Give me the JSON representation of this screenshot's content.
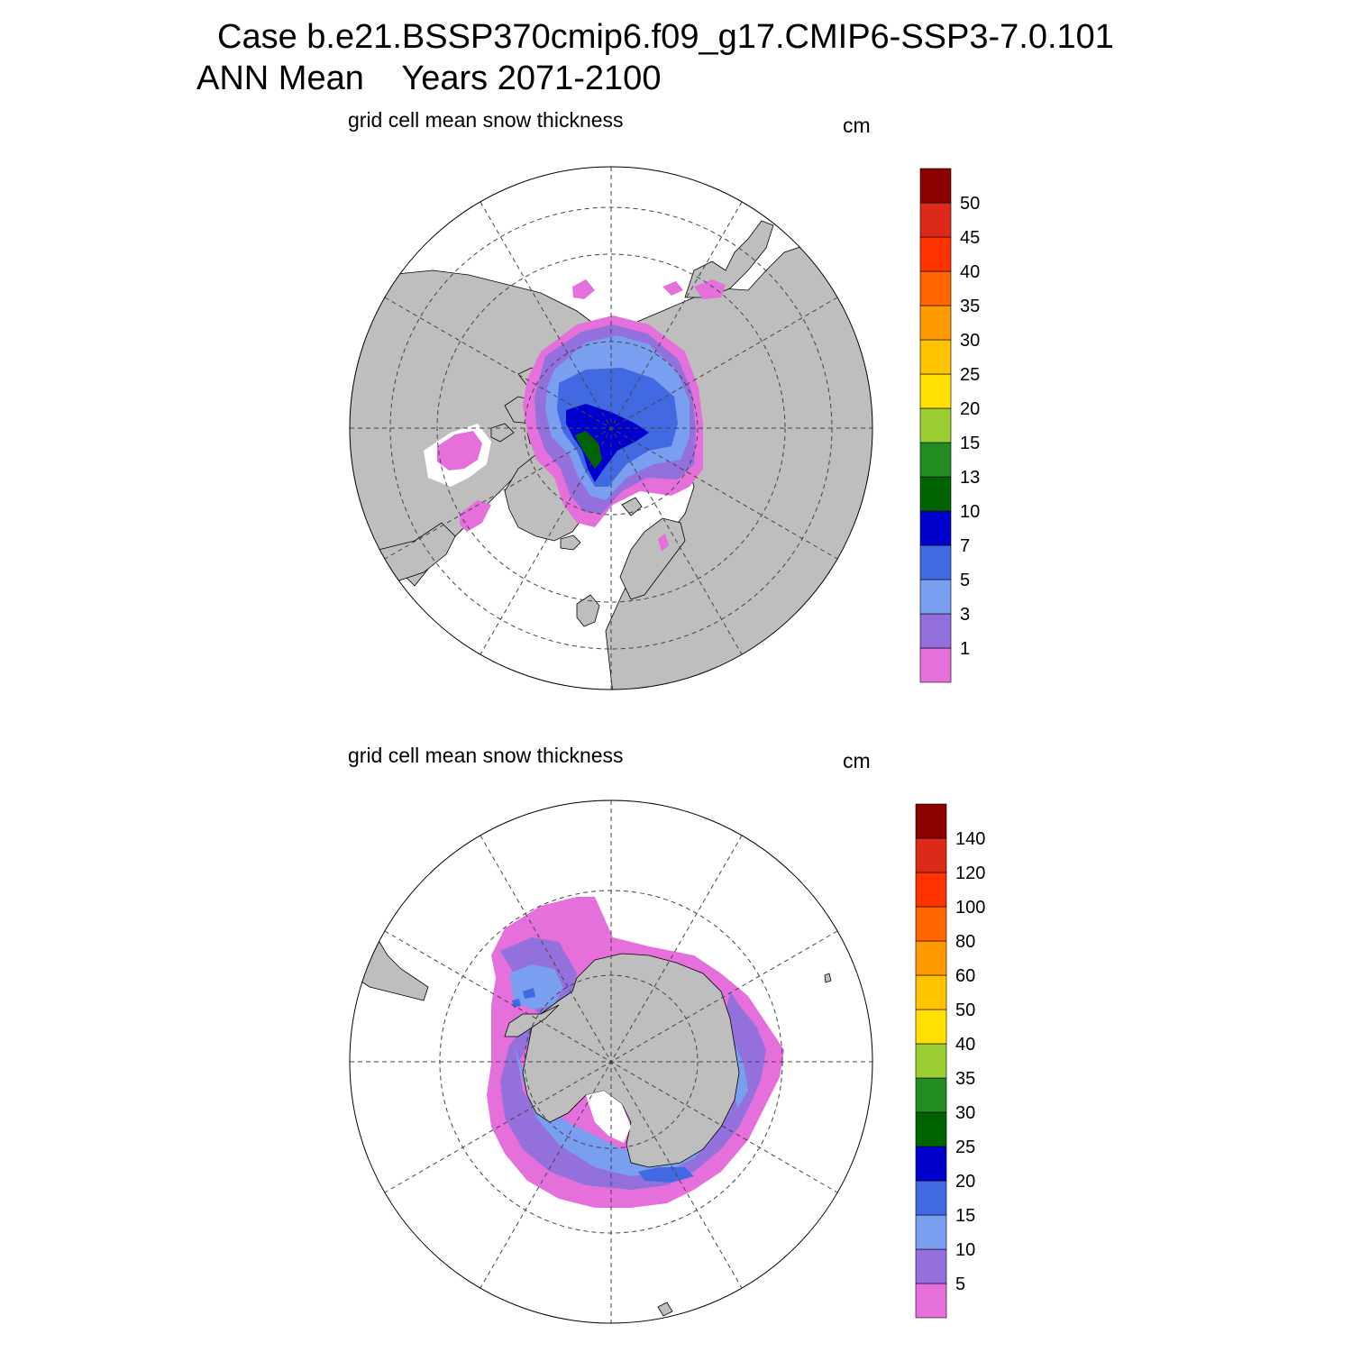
{
  "title": {
    "line1": "Case b.e21.BSSP370cmip6.f09_g17.CMIP6-SSP3-7.0.101",
    "line2": "ANN Mean    Years 2071-2100"
  },
  "colors": {
    "land": "#bebebe",
    "ocean": "#ffffff",
    "coast": "#000000",
    "grid": "#444444"
  },
  "panels": [
    {
      "name": "north",
      "subtitle": "grid cell mean snow thickness",
      "units": "cm",
      "colorbar": {
        "colors": [
          "#e570dc",
          "#9370db",
          "#7a9ef0",
          "#4169e1",
          "#0000cd",
          "#006400",
          "#228b22",
          "#9acd32",
          "#ffe000",
          "#ffc300",
          "#ff9a00",
          "#ff6600",
          "#ff3300",
          "#dd2a18",
          "#8b0000"
        ],
        "labels": [
          "1",
          "3",
          "5",
          "7",
          "10",
          "13",
          "15",
          "20",
          "25",
          "30",
          "35",
          "40",
          "45",
          "50"
        ]
      }
    },
    {
      "name": "south",
      "subtitle": "grid cell mean snow thickness",
      "units": "cm",
      "colorbar": {
        "colors": [
          "#e570dc",
          "#9370db",
          "#7a9ef0",
          "#4169e1",
          "#0000cd",
          "#006400",
          "#228b22",
          "#9acd32",
          "#ffe000",
          "#ffc300",
          "#ff9a00",
          "#ff6600",
          "#ff3300",
          "#dd2a18",
          "#8b0000"
        ],
        "labels": [
          "5",
          "10",
          "15",
          "20",
          "25",
          "30",
          "35",
          "40",
          "50",
          "60",
          "80",
          "100",
          "120",
          "140"
        ]
      }
    }
  ]
}
